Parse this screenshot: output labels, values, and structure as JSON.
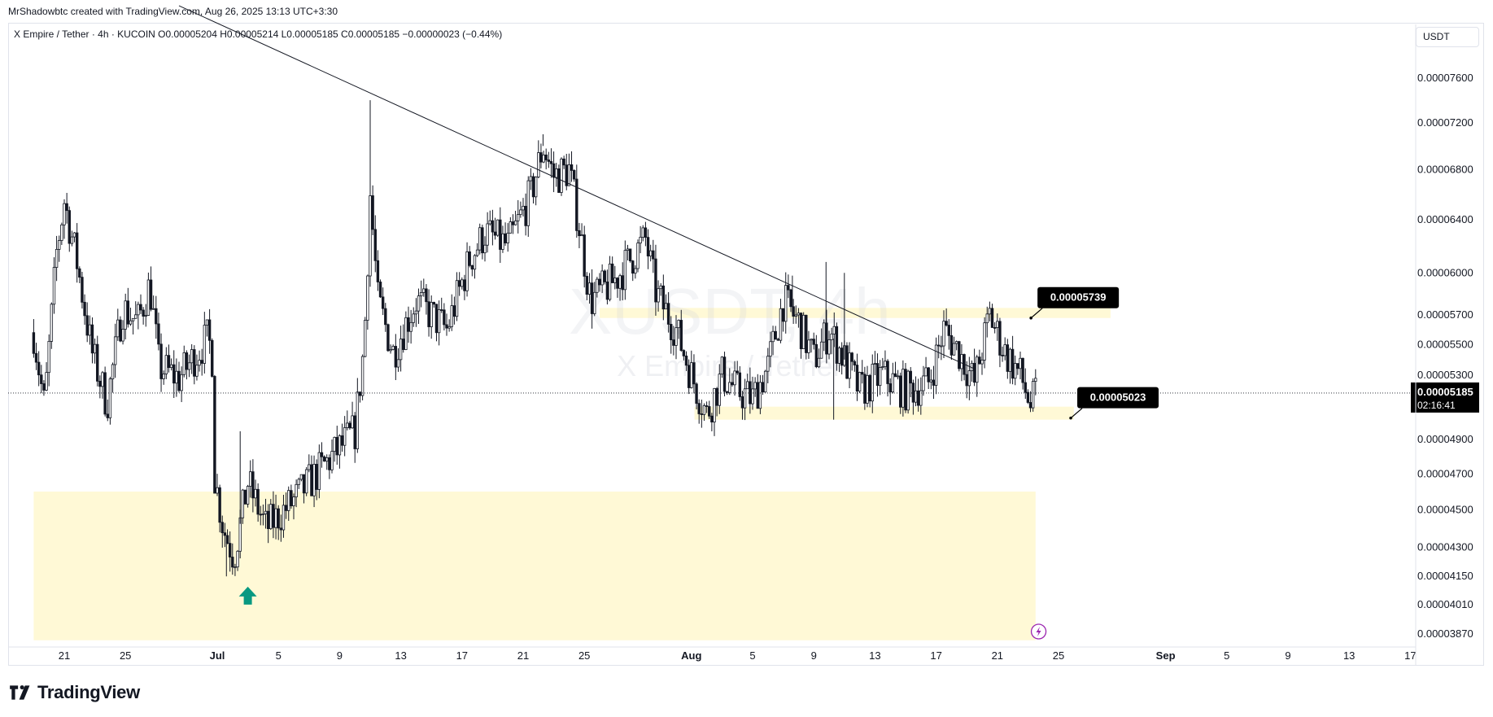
{
  "attribution": "MrShadowbtc created with TradingView.com, Aug 26, 2025 13:13 UTC+3:30",
  "legend": "X Empire / Tether · 4h · KUCOIN  O0.00005204  H0.00005214  L0.00005185  C0.00005185  −0.00000023 (−0.44%)",
  "unit": "USDT",
  "footer_brand": "TradingView",
  "colors": {
    "up": "#131722",
    "down": "#131722",
    "zone": "#fff9d6",
    "arrow": "#089981",
    "label_bg": "#000000",
    "label_text": "#ffffff",
    "watermark": "#d1d4dc"
  },
  "chart_data": {
    "type": "candlestick",
    "symbol": "XUSDT",
    "watermark_title": "XUSDT, 4h",
    "watermark_subtitle": "X Empire / Tether",
    "timeframe": "4h",
    "x_ticks": [
      "21",
      "25",
      "Jul",
      "5",
      "9",
      "13",
      "17",
      "21",
      "25",
      "Aug",
      "5",
      "9",
      "13",
      "17",
      "21",
      "25",
      "Sep",
      "5",
      "9",
      "13",
      "17"
    ],
    "y_ticks": [
      "0.00007600",
      "0.00007200",
      "0.00006800",
      "0.00006400",
      "0.00006000",
      "0.00005700",
      "0.00005500",
      "0.00005300",
      "0.00004900",
      "0.00004700",
      "0.00004500",
      "0.00004300",
      "0.00004150",
      "0.00004010",
      "0.00003870"
    ],
    "y_tick_values": [
      7.6e-05,
      7.2e-05,
      6.8e-05,
      6.4e-05,
      6e-05,
      5.7e-05,
      5.5e-05,
      5.3e-05,
      4.9e-05,
      4.7e-05,
      4.5e-05,
      4.3e-05,
      4.15e-05,
      4.01e-05,
      3.87e-05
    ],
    "y_scale": "log",
    "ylim": [
      3.82e-05,
      7.83e-05
    ],
    "current_price": "0.00005185",
    "current_price_value": 5.185e-05,
    "countdown": "02:16:41",
    "close_path": [
      {
        "day": -12.0,
        "v": 5.58e-05
      },
      {
        "day": -11.3,
        "v": 5.1e-05
      },
      {
        "day": -10.5,
        "v": 6.15e-05
      },
      {
        "day": -10.0,
        "v": 6.55e-05
      },
      {
        "day": -9.2,
        "v": 6.1e-05
      },
      {
        "day": -8.2,
        "v": 5.45e-05
      },
      {
        "day": -7.2,
        "v": 5.12e-05
      },
      {
        "day": -6.2,
        "v": 5.75e-05
      },
      {
        "day": -5.2,
        "v": 5.65e-05
      },
      {
        "day": -4.4,
        "v": 5.92e-05
      },
      {
        "day": -3.8,
        "v": 5.35e-05
      },
      {
        "day": -2.5,
        "v": 5.28e-05
      },
      {
        "day": -0.6,
        "v": 5.55e-05
      },
      {
        "day": -0.3,
        "v": 5.4e-05
      },
      {
        "day": -0.2,
        "v": 4.7e-05
      },
      {
        "day": 0.4,
        "v": 4.4e-05
      },
      {
        "day": 1.1,
        "v": 4.25e-05
      },
      {
        "day": 2.0,
        "v": 4.65e-05
      },
      {
        "day": 3.2,
        "v": 4.4e-05
      },
      {
        "day": 5.0,
        "v": 4.55e-05
      },
      {
        "day": 7.0,
        "v": 4.75e-05
      },
      {
        "day": 9.0,
        "v": 4.95e-05
      },
      {
        "day": 9.6,
        "v": 5.5e-05
      },
      {
        "day": 10.0,
        "v": 6.6e-05
      },
      {
        "day": 10.5,
        "v": 5.8e-05
      },
      {
        "day": 11.5,
        "v": 5.45e-05
      },
      {
        "day": 13.0,
        "v": 5.8e-05
      },
      {
        "day": 15.0,
        "v": 5.6e-05
      },
      {
        "day": 16.5,
        "v": 6.1e-05
      },
      {
        "day": 17.5,
        "v": 6.3e-05
      },
      {
        "day": 19.0,
        "v": 6.2e-05
      },
      {
        "day": 20.5,
        "v": 6.6e-05
      },
      {
        "day": 21.3,
        "v": 7e-05
      },
      {
        "day": 22.0,
        "v": 6.75e-05
      },
      {
        "day": 23.0,
        "v": 6.8e-05
      },
      {
        "day": 23.6,
        "v": 6.4e-05
      },
      {
        "day": 24.4,
        "v": 5.8e-05
      },
      {
        "day": 26.0,
        "v": 5.95e-05
      },
      {
        "day": 28.0,
        "v": 6.25e-05
      },
      {
        "day": 28.7,
        "v": 5.85e-05
      },
      {
        "day": 30.0,
        "v": 5.6e-05
      },
      {
        "day": 31.0,
        "v": 5.3e-05
      },
      {
        "day": 32.0,
        "v": 5.05e-05
      },
      {
        "day": 33.0,
        "v": 5.3e-05
      },
      {
        "day": 34.0,
        "v": 5.2e-05
      },
      {
        "day": 35.0,
        "v": 5.15e-05
      },
      {
        "day": 36.0,
        "v": 5.35e-05
      },
      {
        "day": 37.0,
        "v": 5.8e-05
      },
      {
        "day": 38.0,
        "v": 5.65e-05
      },
      {
        "day": 39.0,
        "v": 5.4e-05
      },
      {
        "day": 40.0,
        "v": 5.6e-05
      },
      {
        "day": 41.0,
        "v": 5.4e-05
      },
      {
        "day": 42.0,
        "v": 5.2e-05
      },
      {
        "day": 43.5,
        "v": 5.3e-05
      },
      {
        "day": 45.0,
        "v": 5.2e-05
      },
      {
        "day": 46.5,
        "v": 5.25e-05
      },
      {
        "day": 47.5,
        "v": 5.6e-05
      },
      {
        "day": 48.5,
        "v": 5.45e-05
      },
      {
        "day": 49.5,
        "v": 5.25e-05
      },
      {
        "day": 50.5,
        "v": 5.7e-05
      },
      {
        "day": 51.5,
        "v": 5.45e-05
      },
      {
        "day": 52.5,
        "v": 5.3e-05
      },
      {
        "day": 53.2,
        "v": 5.1e-05
      },
      {
        "day": 53.5,
        "v": 5.18e-05
      }
    ],
    "wick_spikes": [
      {
        "day": 10.0,
        "v": 7.4e-05
      },
      {
        "day": 1.5,
        "v": 4.95e-05
      },
      {
        "day": 0.6,
        "v": 4.15e-05
      },
      {
        "day": 39.8,
        "v": 6.08e-05
      },
      {
        "day": 40.3,
        "v": 5.02e-05
      },
      {
        "day": 41.0,
        "v": 6e-05
      },
      {
        "day": 37.6,
        "v": 5.98e-05
      },
      {
        "day": 21.3,
        "v": 7.1e-05
      }
    ],
    "zones": [
      {
        "from_day": -12.0,
        "to_day": 53.5,
        "low": 3.84e-05,
        "high": 4.6e-05
      },
      {
        "from_day": 31.2,
        "to_day": 56.0,
        "low": 5.02e-05,
        "high": 5.1e-05
      },
      {
        "from_day": 25.0,
        "to_day": 58.4,
        "low": 5.68e-05,
        "high": 5.75e-05
      }
    ],
    "trendline": {
      "from_day": -2.5,
      "from": 8.3e-05,
      "to_day": 49.5,
      "to": 5.34e-05
    },
    "labels": [
      {
        "text": "0.00005739",
        "day": 53.2,
        "v": 5.68e-05
      },
      {
        "text": "0.00005023",
        "day": 55.8,
        "v": 5.03e-05
      }
    ],
    "arrow": {
      "day": 2.0,
      "v": 4.05e-05
    }
  }
}
